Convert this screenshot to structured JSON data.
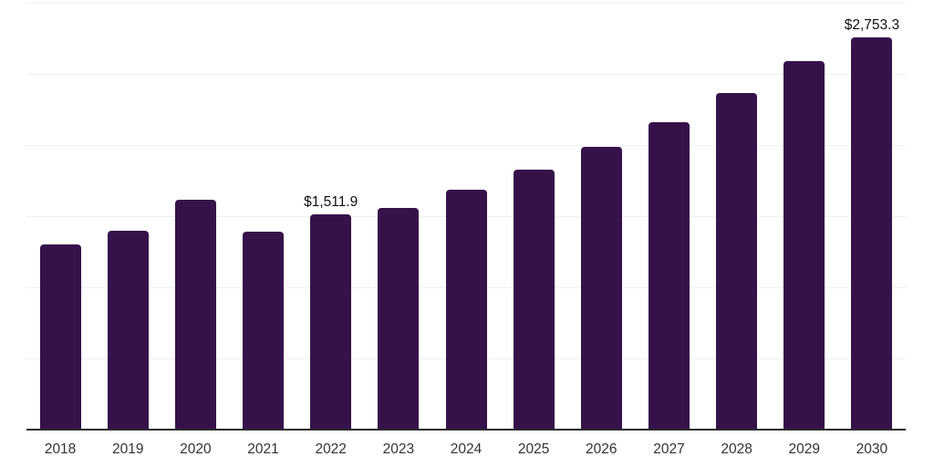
{
  "chart_data": {
    "type": "bar",
    "title": "",
    "xlabel": "",
    "ylabel": "",
    "categories": [
      "2018",
      "2019",
      "2020",
      "2021",
      "2022",
      "2023",
      "2024",
      "2025",
      "2026",
      "2027",
      "2028",
      "2029",
      "2030"
    ],
    "values": [
      1300,
      1395,
      1610,
      1390,
      1511.9,
      1555,
      1680,
      1825,
      1985,
      2160,
      2360,
      2585,
      2753.3
    ],
    "point_labels": [
      "",
      "",
      "",
      "",
      "$1,511.9",
      "",
      "",
      "",
      "",
      "",
      "",
      "",
      "$2,753.3"
    ],
    "ylim": [
      0,
      3000
    ],
    "gridline_step": 500,
    "grid": true,
    "legend": "none",
    "bar_color": "#36124B",
    "gridline_color": "#efefef",
    "axis_line_color": "#2b2b2b",
    "tick_label_color": "#333333",
    "data_label_color": "#111111"
  }
}
